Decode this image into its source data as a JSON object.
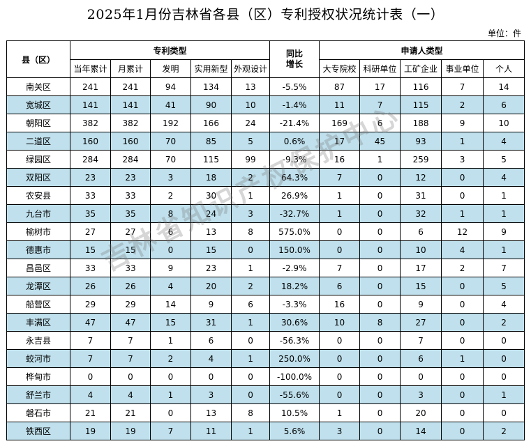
{
  "title": "2025年1月份吉林省各县（区）专利授权状况统计表（一）",
  "unit": "单位：件",
  "watermark": "吉林省知识产权保护中心",
  "headers": {
    "county": "县（区）",
    "patent_type": "专利类型",
    "yoy": "同比增长",
    "applicant_type": "申请人类型",
    "sub": [
      "当年累计",
      "月累计",
      "发明",
      "实用新型",
      "外观设计",
      "大专院校",
      "科研单位",
      "工矿企业",
      "事业单位",
      "个人"
    ]
  },
  "rows": [
    {
      "county": "南关区",
      "cells": [
        "241",
        "241",
        "94",
        "134",
        "13",
        "-5.5%",
        "87",
        "17",
        "116",
        "7",
        "14"
      ]
    },
    {
      "county": "宽城区",
      "cells": [
        "141",
        "141",
        "41",
        "90",
        "10",
        "-1.4%",
        "11",
        "7",
        "115",
        "2",
        "6"
      ]
    },
    {
      "county": "朝阳区",
      "cells": [
        "382",
        "382",
        "192",
        "166",
        "24",
        "-21.4%",
        "169",
        "6",
        "188",
        "9",
        "10"
      ]
    },
    {
      "county": "二道区",
      "cells": [
        "160",
        "160",
        "70",
        "85",
        "5",
        "0.6%",
        "17",
        "45",
        "93",
        "1",
        "4"
      ]
    },
    {
      "county": "绿园区",
      "cells": [
        "284",
        "284",
        "70",
        "115",
        "99",
        "-9.3%",
        "16",
        "1",
        "259",
        "3",
        "5"
      ]
    },
    {
      "county": "双阳区",
      "cells": [
        "23",
        "23",
        "3",
        "18",
        "2",
        "64.3%",
        "7",
        "0",
        "12",
        "0",
        "4"
      ]
    },
    {
      "county": "农安县",
      "cells": [
        "33",
        "33",
        "2",
        "30",
        "1",
        "26.9%",
        "1",
        "0",
        "31",
        "0",
        "1"
      ]
    },
    {
      "county": "九台市",
      "cells": [
        "35",
        "35",
        "8",
        "24",
        "3",
        "-32.7%",
        "1",
        "0",
        "32",
        "1",
        "1"
      ]
    },
    {
      "county": "榆树市",
      "cells": [
        "27",
        "27",
        "6",
        "13",
        "8",
        "575.0%",
        "0",
        "0",
        "6",
        "12",
        "9"
      ]
    },
    {
      "county": "德惠市",
      "cells": [
        "15",
        "15",
        "0",
        "15",
        "0",
        "150.0%",
        "0",
        "0",
        "10",
        "4",
        "1"
      ]
    },
    {
      "county": "昌邑区",
      "cells": [
        "33",
        "33",
        "9",
        "23",
        "1",
        "-2.9%",
        "7",
        "0",
        "17",
        "2",
        "7"
      ]
    },
    {
      "county": "龙潭区",
      "cells": [
        "26",
        "26",
        "4",
        "20",
        "2",
        "18.2%",
        "6",
        "0",
        "15",
        "0",
        "5"
      ]
    },
    {
      "county": "船营区",
      "cells": [
        "29",
        "29",
        "14",
        "9",
        "6",
        "-3.3%",
        "16",
        "0",
        "9",
        "0",
        "4"
      ]
    },
    {
      "county": "丰满区",
      "cells": [
        "47",
        "47",
        "15",
        "31",
        "1",
        "30.6%",
        "10",
        "8",
        "27",
        "0",
        "2"
      ]
    },
    {
      "county": "永吉县",
      "cells": [
        "7",
        "7",
        "1",
        "6",
        "0",
        "-56.3%",
        "0",
        "0",
        "7",
        "0",
        "0"
      ]
    },
    {
      "county": "蛟河市",
      "cells": [
        "7",
        "7",
        "2",
        "4",
        "1",
        "250.0%",
        "0",
        "0",
        "6",
        "1",
        "0"
      ]
    },
    {
      "county": "桦甸市",
      "cells": [
        "0",
        "0",
        "0",
        "0",
        "0",
        "-100.0%",
        "0",
        "0",
        "0",
        "0",
        "0"
      ]
    },
    {
      "county": "舒兰市",
      "cells": [
        "4",
        "4",
        "1",
        "3",
        "0",
        "-55.6%",
        "0",
        "0",
        "3",
        "0",
        "1"
      ]
    },
    {
      "county": "磐石市",
      "cells": [
        "21",
        "21",
        "0",
        "13",
        "8",
        "10.5%",
        "1",
        "0",
        "20",
        "0",
        "0"
      ]
    },
    {
      "county": "铁西区",
      "cells": [
        "19",
        "19",
        "7",
        "11",
        "1",
        "5.6%",
        "3",
        "0",
        "14",
        "0",
        "2"
      ]
    }
  ]
}
